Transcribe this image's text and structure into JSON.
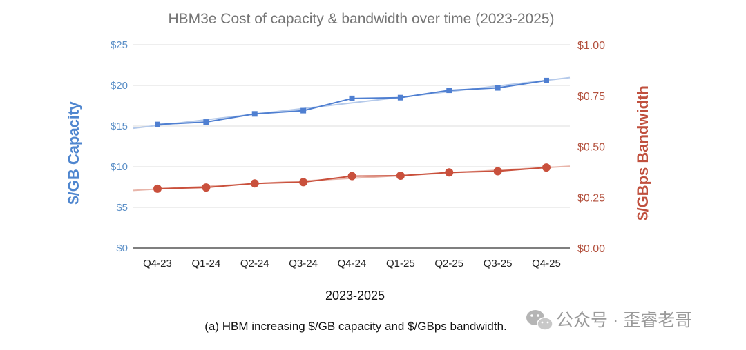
{
  "chart_data": {
    "type": "line",
    "title": "HBM3e Cost of capacity & bandwidth over time (2023-2025)",
    "xlabel": "2023-2025",
    "ylabel_left": "$/GB Capacity",
    "ylabel_right": "$/GBps Bandwidth",
    "categories": [
      "Q4-23",
      "Q1-24",
      "Q2-24",
      "Q3-24",
      "Q4-24",
      "Q1-25",
      "Q2-25",
      "Q3-25",
      "Q4-25"
    ],
    "series": [
      {
        "name": "$/GB Capacity",
        "axis": "left",
        "marker": "square",
        "color": "#4f7fd1",
        "trendline_color": "#b4c9ea",
        "values": [
          15.2,
          15.5,
          16.5,
          16.9,
          18.4,
          18.5,
          19.4,
          19.7,
          20.6
        ]
      },
      {
        "name": "$/GBps Bandwidth",
        "axis": "right",
        "marker": "circle",
        "color": "#c9503c",
        "trendline_color": "#e8b5aa",
        "values": [
          0.292,
          0.298,
          0.318,
          0.324,
          0.354,
          0.356,
          0.372,
          0.378,
          0.396
        ]
      }
    ],
    "y_left": {
      "min": 0,
      "max": 25,
      "ticks": [
        "$0",
        "$5",
        "$10",
        "$15",
        "$20",
        "$25"
      ]
    },
    "y_right": {
      "min": 0,
      "max": 1,
      "ticks": [
        "$0.00",
        "$0.25",
        "$0.50",
        "$0.75",
        "$1.00"
      ]
    },
    "grid": true,
    "trendlines": true,
    "legend": "none"
  },
  "caption": "(a) HBM increasing $/GB capacity and $/GBps bandwidth.",
  "watermark": {
    "text": "公众号 · 歪睿老哥",
    "icon": "wechat-icon"
  }
}
